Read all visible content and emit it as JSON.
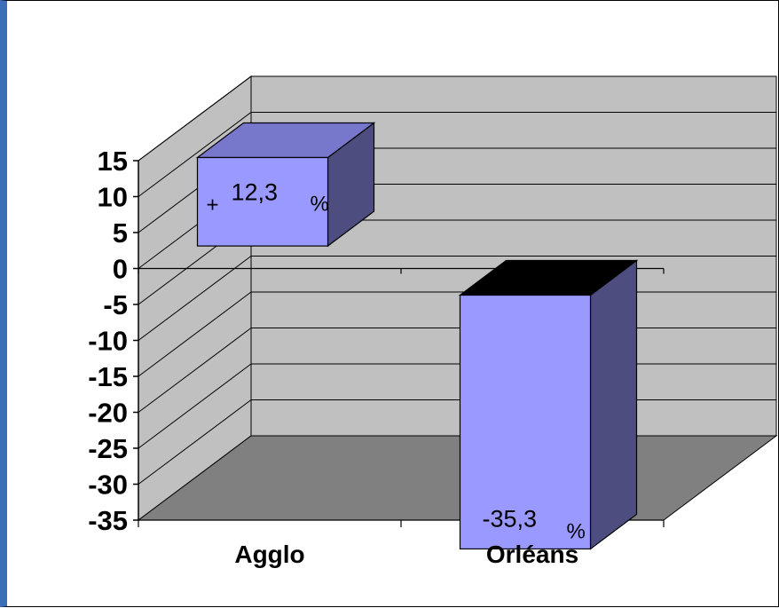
{
  "chart_data": {
    "type": "bar",
    "style": "3d-column",
    "categories": [
      "Agglo",
      "Orléans"
    ],
    "series": [
      {
        "values": [
          12.3,
          -35.3
        ]
      }
    ],
    "data_labels": [
      {
        "prefix": "+",
        "value_text": "12,3",
        "unit": "%"
      },
      {
        "prefix": "",
        "value_text": "-35,3",
        "unit": "%"
      }
    ],
    "y_ticks": [
      "15",
      "10",
      "5",
      "0",
      "-5",
      "-10",
      "-15",
      "-20",
      "-25",
      "-30",
      "-35"
    ],
    "ylim": [
      -35,
      15
    ],
    "grid": true,
    "legend": "none",
    "colors": {
      "bar_front": "#9999ff",
      "bar_top_agglo": "#7777cc",
      "bar_top_orleans": "#000000",
      "bar_side": "#4d4d80",
      "back_wall": "#c0c0c0",
      "side_wall": "#c0c0c0",
      "floor": "#808080",
      "gridline": "#000000",
      "frame_left_accent": "#3a6fb8"
    }
  }
}
